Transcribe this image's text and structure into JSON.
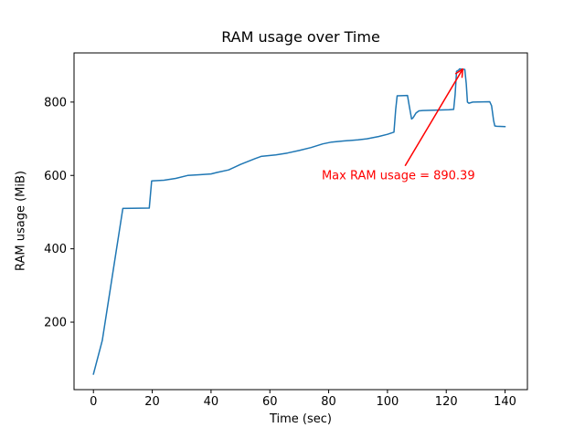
{
  "chart_data": {
    "type": "line",
    "title": "RAM usage over Time",
    "xlabel": "Time (sec)",
    "ylabel": "RAM usage (MiB)",
    "xlim": [
      -6.6,
      147.6
    ],
    "ylim": [
      16,
      934
    ],
    "xticks": [
      0,
      20,
      40,
      60,
      80,
      100,
      120,
      140
    ],
    "yticks": [
      200,
      400,
      600,
      800
    ],
    "grid": false,
    "legend": "none",
    "line_color": "#1f77b4",
    "axis_color": "#000000",
    "series": [
      {
        "name": "RAM usage",
        "points": [
          [
            0,
            58
          ],
          [
            3,
            150
          ],
          [
            10,
            510
          ],
          [
            19,
            511
          ],
          [
            19.8,
            585
          ],
          [
            24,
            587
          ],
          [
            28,
            592
          ],
          [
            32,
            600
          ],
          [
            36,
            602
          ],
          [
            40,
            604
          ],
          [
            42,
            608
          ],
          [
            46,
            615
          ],
          [
            50,
            630
          ],
          [
            55,
            646
          ],
          [
            57,
            652
          ],
          [
            62,
            656
          ],
          [
            66,
            661
          ],
          [
            70,
            668
          ],
          [
            74,
            676
          ],
          [
            78,
            686
          ],
          [
            81,
            691
          ],
          [
            85,
            694
          ],
          [
            90,
            697
          ],
          [
            93,
            700
          ],
          [
            97,
            706
          ],
          [
            100,
            712
          ],
          [
            102.2,
            718
          ],
          [
            102.8,
            780
          ],
          [
            103.3,
            817
          ],
          [
            106.8,
            818
          ],
          [
            107.4,
            790
          ],
          [
            108.2,
            754
          ],
          [
            108.7,
            757
          ],
          [
            109.7,
            770
          ],
          [
            110.7,
            776
          ],
          [
            112,
            777
          ],
          [
            121,
            779
          ],
          [
            122.5,
            780
          ],
          [
            123,
            820
          ],
          [
            123.5,
            884
          ],
          [
            124.2,
            887
          ],
          [
            124.5,
            890.39
          ],
          [
            126.3,
            889
          ],
          [
            126.8,
            850
          ],
          [
            127.2,
            800
          ],
          [
            127.7,
            797
          ],
          [
            129,
            800
          ],
          [
            134.8,
            801
          ],
          [
            135.4,
            790
          ],
          [
            136.1,
            750
          ],
          [
            136.5,
            735
          ],
          [
            137.2,
            734
          ],
          [
            140,
            733
          ]
        ]
      }
    ],
    "annotation": {
      "text": "Max RAM usage = 890.39",
      "color": "#ff0000",
      "xy": [
        125.6,
        890
      ],
      "arrow_tail": [
        106,
        626
      ],
      "text_center": [
        103.7,
        601
      ]
    }
  }
}
